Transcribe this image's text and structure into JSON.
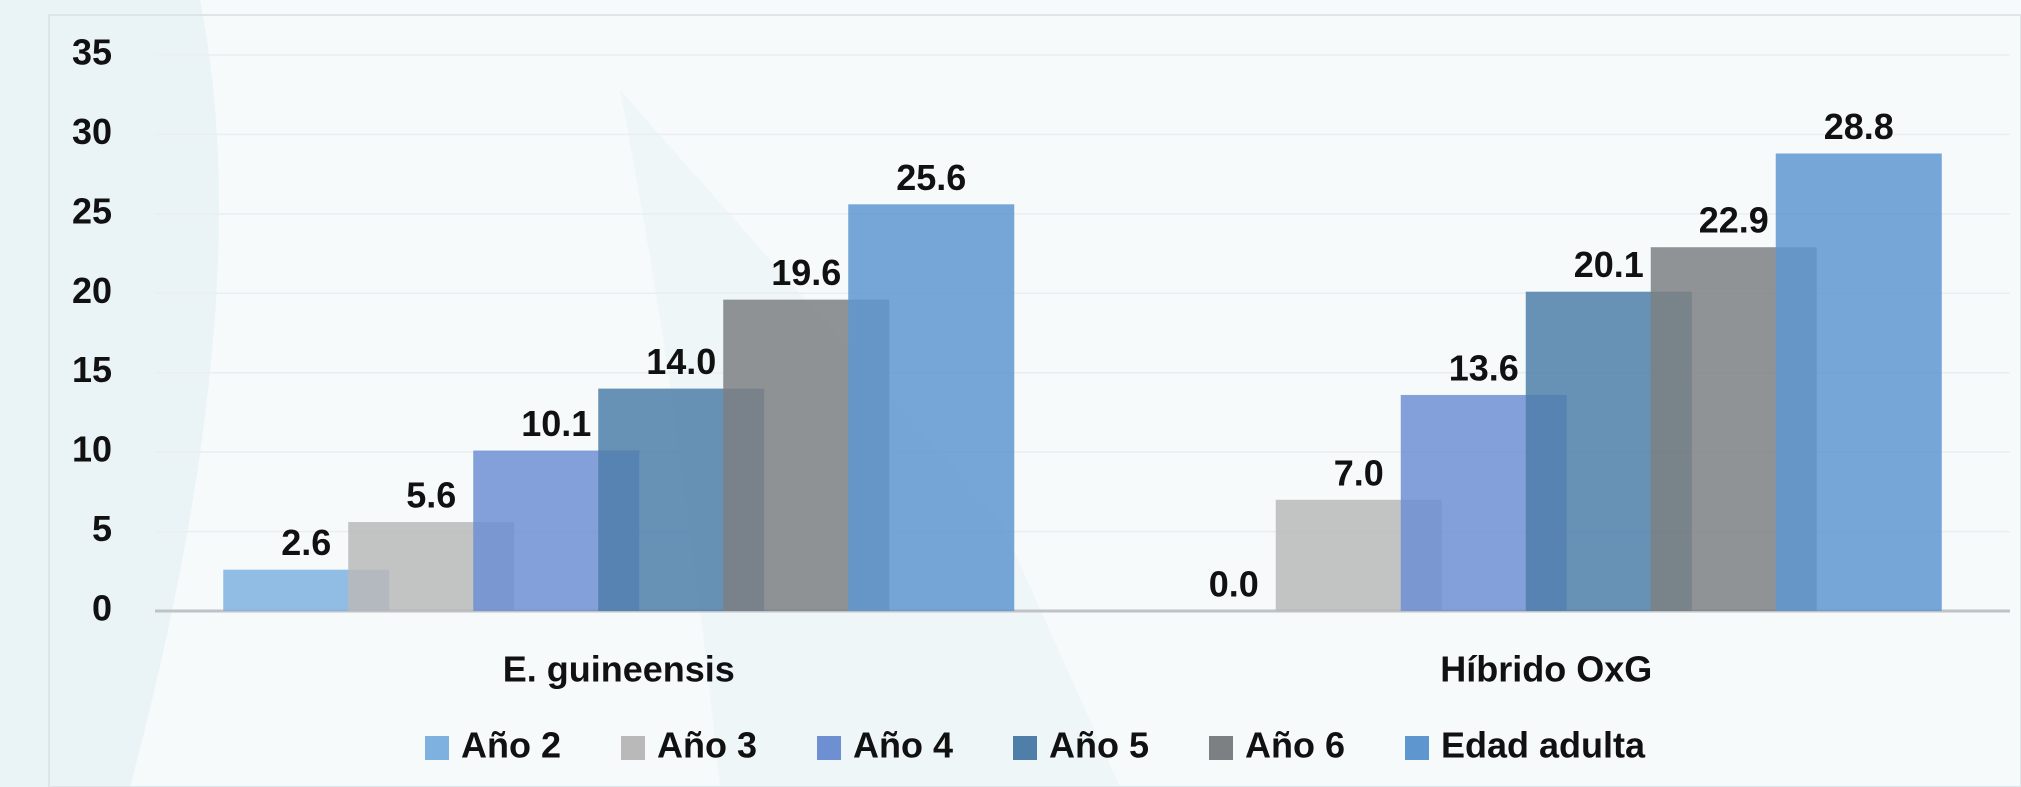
{
  "chart_data": {
    "type": "bar",
    "categories": [
      "E. guineensis",
      "Híbrido OxG"
    ],
    "series": [
      {
        "name": "Año 2",
        "color": "#7fb1e0",
        "values": [
          2.6,
          0
        ],
        "value_labels": [
          "2.6",
          "0.0"
        ]
      },
      {
        "name": "Año 3",
        "color": "#b9b9b9",
        "values": [
          5.6,
          7
        ],
        "value_labels": [
          "5.6",
          "7.0"
        ]
      },
      {
        "name": "Año 4",
        "color": "#6f8fd3",
        "values": [
          10.1,
          13.6
        ],
        "value_labels": [
          "10.1",
          "13.6"
        ]
      },
      {
        "name": "Año 5",
        "color": "#4f7ea9",
        "values": [
          14,
          20.1
        ],
        "value_labels": [
          "14.0",
          "20.1"
        ]
      },
      {
        "name": "Año 6",
        "color": "#7d8083",
        "values": [
          19.6,
          22.9
        ],
        "value_labels": [
          "19.6",
          "22.9"
        ]
      },
      {
        "name": "Edad adulta",
        "color": "#5e97d0",
        "values": [
          25.6,
          28.8
        ],
        "value_labels": [
          "25.6",
          "28.8"
        ]
      }
    ],
    "ylim": [
      0,
      35
    ],
    "yticks": [
      0,
      5,
      10,
      15,
      20,
      25,
      30,
      35
    ],
    "grid": true,
    "legend": "bottom"
  }
}
